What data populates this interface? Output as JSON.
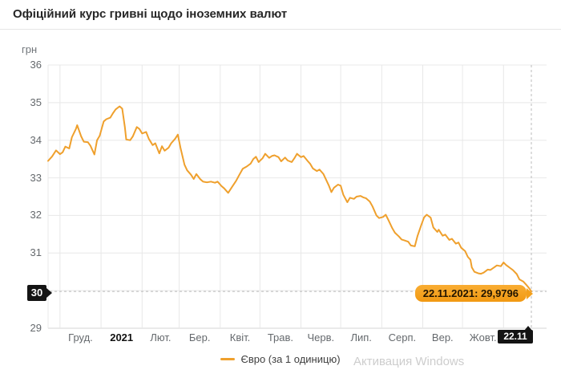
{
  "header": {
    "title": "Офіційний курс гривні щодо іноземних валют"
  },
  "watermark": {
    "text": "Активация Windows"
  },
  "chart_data": {
    "type": "line",
    "title": "Офіційний курс гривні щодо іноземних валют",
    "grid": true,
    "legend_position": "bottom-center",
    "y_axis": {
      "unit": "грн",
      "min": 29,
      "max": 36,
      "ticks": [
        36,
        35,
        34,
        33,
        32,
        31,
        30,
        29
      ]
    },
    "x_axis": {
      "start_date": "22.11.2020",
      "end_date": "22.11.2021",
      "span_days": 365,
      "month_boundary_days": [
        9,
        40,
        71,
        99,
        130,
        160,
        191,
        221,
        252,
        283,
        313,
        344
      ],
      "ticks": [
        {
          "label": "Груд.",
          "day": 24.5
        },
        {
          "label": "2021",
          "day": 55.5,
          "emphasis": true
        },
        {
          "label": "Лют.",
          "day": 85
        },
        {
          "label": "Бер.",
          "day": 114.5
        },
        {
          "label": "Квіт.",
          "day": 145
        },
        {
          "label": "Трав.",
          "day": 175.5
        },
        {
          "label": "Черв.",
          "day": 206
        },
        {
          "label": "Лип.",
          "day": 236.5
        },
        {
          "label": "Серп.",
          "day": 267.5
        },
        {
          "label": "Вер.",
          "day": 298
        },
        {
          "label": "Жовт.",
          "day": 328.5
        }
      ]
    },
    "crosshair": {
      "day": 365,
      "value": 29.9796,
      "x_label": "22.11",
      "y_label": "30"
    },
    "tooltip": {
      "text": "22.11.2021: 29,9796"
    },
    "series": [
      {
        "name": "Євро (за 1 одиницю)",
        "color": "#efa02d",
        "points": [
          [
            0,
            33.45
          ],
          [
            3,
            33.57
          ],
          [
            6,
            33.73
          ],
          [
            9,
            33.63
          ],
          [
            11,
            33.68
          ],
          [
            13,
            33.83
          ],
          [
            16,
            33.78
          ],
          [
            18,
            34.08
          ],
          [
            21,
            34.3
          ],
          [
            22,
            34.4
          ],
          [
            25,
            34.1
          ],
          [
            27,
            33.96
          ],
          [
            30,
            33.95
          ],
          [
            32,
            33.85
          ],
          [
            35,
            33.62
          ],
          [
            37,
            34.0
          ],
          [
            39,
            34.12
          ],
          [
            42,
            34.5
          ],
          [
            44,
            34.56
          ],
          [
            47,
            34.6
          ],
          [
            49,
            34.72
          ],
          [
            51,
            34.82
          ],
          [
            54,
            34.9
          ],
          [
            56,
            34.84
          ],
          [
            58,
            34.35
          ],
          [
            59,
            34.02
          ],
          [
            62,
            34.0
          ],
          [
            64,
            34.1
          ],
          [
            67,
            34.35
          ],
          [
            69,
            34.3
          ],
          [
            71,
            34.18
          ],
          [
            74,
            34.22
          ],
          [
            76,
            34.04
          ],
          [
            79,
            33.87
          ],
          [
            81,
            33.92
          ],
          [
            84,
            33.65
          ],
          [
            86,
            33.84
          ],
          [
            88,
            33.72
          ],
          [
            91,
            33.8
          ],
          [
            93,
            33.92
          ],
          [
            96,
            34.04
          ],
          [
            98,
            34.15
          ],
          [
            100,
            33.8
          ],
          [
            103,
            33.35
          ],
          [
            105,
            33.2
          ],
          [
            108,
            33.08
          ],
          [
            110,
            32.97
          ],
          [
            112,
            33.1
          ],
          [
            115,
            32.96
          ],
          [
            117,
            32.9
          ],
          [
            120,
            32.88
          ],
          [
            123,
            32.9
          ],
          [
            126,
            32.87
          ],
          [
            128,
            32.9
          ],
          [
            131,
            32.78
          ],
          [
            133,
            32.72
          ],
          [
            136,
            32.6
          ],
          [
            139,
            32.76
          ],
          [
            142,
            32.92
          ],
          [
            144,
            33.05
          ],
          [
            147,
            33.24
          ],
          [
            150,
            33.3
          ],
          [
            153,
            33.38
          ],
          [
            155,
            33.5
          ],
          [
            157,
            33.56
          ],
          [
            159,
            33.42
          ],
          [
            162,
            33.52
          ],
          [
            164,
            33.64
          ],
          [
            167,
            33.53
          ],
          [
            169,
            33.58
          ],
          [
            171,
            33.6
          ],
          [
            174,
            33.55
          ],
          [
            176,
            33.44
          ],
          [
            179,
            33.54
          ],
          [
            181,
            33.46
          ],
          [
            184,
            33.42
          ],
          [
            186,
            33.52
          ],
          [
            188,
            33.64
          ],
          [
            191,
            33.55
          ],
          [
            193,
            33.58
          ],
          [
            196,
            33.45
          ],
          [
            198,
            33.37
          ],
          [
            200,
            33.25
          ],
          [
            203,
            33.18
          ],
          [
            205,
            33.22
          ],
          [
            208,
            33.1
          ],
          [
            210,
            32.95
          ],
          [
            212,
            32.8
          ],
          [
            214,
            32.62
          ],
          [
            216,
            32.74
          ],
          [
            219,
            32.82
          ],
          [
            221,
            32.79
          ],
          [
            223,
            32.55
          ],
          [
            226,
            32.35
          ],
          [
            228,
            32.47
          ],
          [
            231,
            32.44
          ],
          [
            233,
            32.5
          ],
          [
            236,
            32.52
          ],
          [
            238,
            32.48
          ],
          [
            240,
            32.46
          ],
          [
            243,
            32.37
          ],
          [
            245,
            32.24
          ],
          [
            248,
            32.0
          ],
          [
            250,
            31.93
          ],
          [
            253,
            31.96
          ],
          [
            255,
            32.02
          ],
          [
            257,
            31.88
          ],
          [
            260,
            31.66
          ],
          [
            262,
            31.54
          ],
          [
            265,
            31.44
          ],
          [
            267,
            31.36
          ],
          [
            269,
            31.34
          ],
          [
            272,
            31.3
          ],
          [
            274,
            31.2
          ],
          [
            277,
            31.18
          ],
          [
            279,
            31.45
          ],
          [
            282,
            31.76
          ],
          [
            284,
            31.95
          ],
          [
            286,
            32.02
          ],
          [
            289,
            31.94
          ],
          [
            291,
            31.68
          ],
          [
            294,
            31.56
          ],
          [
            295,
            31.62
          ],
          [
            298,
            31.46
          ],
          [
            300,
            31.49
          ],
          [
            303,
            31.35
          ],
          [
            305,
            31.38
          ],
          [
            308,
            31.25
          ],
          [
            310,
            31.28
          ],
          [
            312,
            31.14
          ],
          [
            315,
            31.05
          ],
          [
            317,
            30.9
          ],
          [
            319,
            30.82
          ],
          [
            320,
            30.62
          ],
          [
            322,
            30.5
          ],
          [
            325,
            30.46
          ],
          [
            327,
            30.45
          ],
          [
            329,
            30.48
          ],
          [
            332,
            30.56
          ],
          [
            334,
            30.55
          ],
          [
            337,
            30.62
          ],
          [
            339,
            30.67
          ],
          [
            342,
            30.65
          ],
          [
            344,
            30.75
          ],
          [
            346,
            30.68
          ],
          [
            349,
            30.6
          ],
          [
            351,
            30.55
          ],
          [
            354,
            30.44
          ],
          [
            356,
            30.3
          ],
          [
            359,
            30.24
          ],
          [
            361,
            30.16
          ],
          [
            363,
            30.08
          ],
          [
            365,
            29.9796
          ]
        ]
      }
    ]
  }
}
